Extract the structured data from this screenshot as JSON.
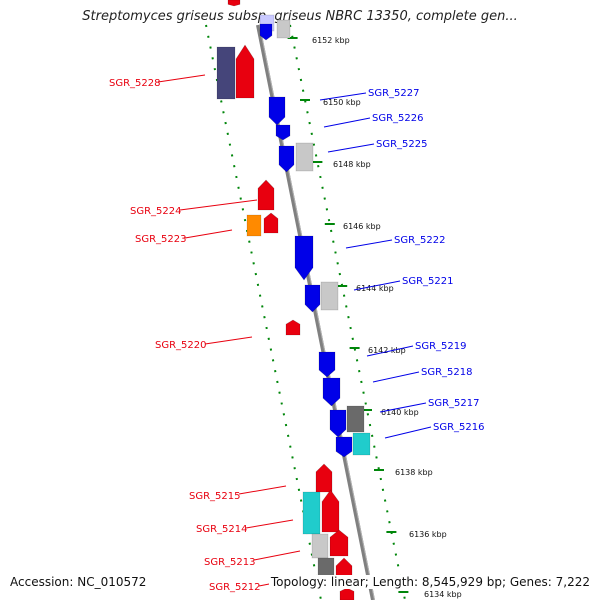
{
  "title": "Streptomyces griseus subsp. griseus NBRC 13350, complete gen...",
  "footer": {
    "accession": "Accession: NC_010572",
    "summary": "Topology: linear; Length: 8,545,929 bp; Genes: 7,222"
  },
  "colors": {
    "forward": "#e8000f",
    "reverse": "#0000e8",
    "backbone": "#808080",
    "ruler": "#00860a",
    "grey_light": "#c8c8c8",
    "grey_dark": "#6a6a6a",
    "navy": "#45457a",
    "cyan": "#20cccc",
    "orange": "#ff8a00"
  },
  "scale": {
    "ticks": [
      {
        "label": "6152 kbp"
      },
      {
        "label": "6150 kbp"
      },
      {
        "label": "6148 kbp"
      },
      {
        "label": "6146 kbp"
      },
      {
        "label": "6144 kbp"
      },
      {
        "label": "6142 kbp"
      },
      {
        "label": "6140 kbp"
      },
      {
        "label": "6138 kbp"
      },
      {
        "label": "6136 kbp"
      },
      {
        "label": "6134 kbp"
      }
    ]
  },
  "genes": [
    {
      "id": "SGR_5228",
      "strand": "+",
      "color": "forward"
    },
    {
      "id": "SGR_5227",
      "strand": "-",
      "color": "reverse"
    },
    {
      "id": "SGR_5226",
      "strand": "-",
      "color": "reverse"
    },
    {
      "id": "SGR_5225",
      "strand": "-",
      "color": "reverse"
    },
    {
      "id": "SGR_5224",
      "strand": "+",
      "color": "forward"
    },
    {
      "id": "SGR_5223",
      "strand": "+",
      "color": "forward"
    },
    {
      "id": "SGR_5222",
      "strand": "-",
      "color": "reverse"
    },
    {
      "id": "SGR_5221",
      "strand": "-",
      "color": "reverse"
    },
    {
      "id": "SGR_5220",
      "strand": "+",
      "color": "forward"
    },
    {
      "id": "SGR_5219",
      "strand": "-",
      "color": "reverse"
    },
    {
      "id": "SGR_5218",
      "strand": "-",
      "color": "reverse"
    },
    {
      "id": "SGR_5217",
      "strand": "-",
      "color": "reverse"
    },
    {
      "id": "SGR_5216",
      "strand": "-",
      "color": "reverse"
    },
    {
      "id": "SGR_5215",
      "strand": "+",
      "color": "forward"
    },
    {
      "id": "SGR_5214",
      "strand": "+",
      "color": "forward"
    },
    {
      "id": "SGR_5213",
      "strand": "+",
      "color": "forward"
    },
    {
      "id": "SGR_5212",
      "strand": "+",
      "color": "forward"
    }
  ]
}
